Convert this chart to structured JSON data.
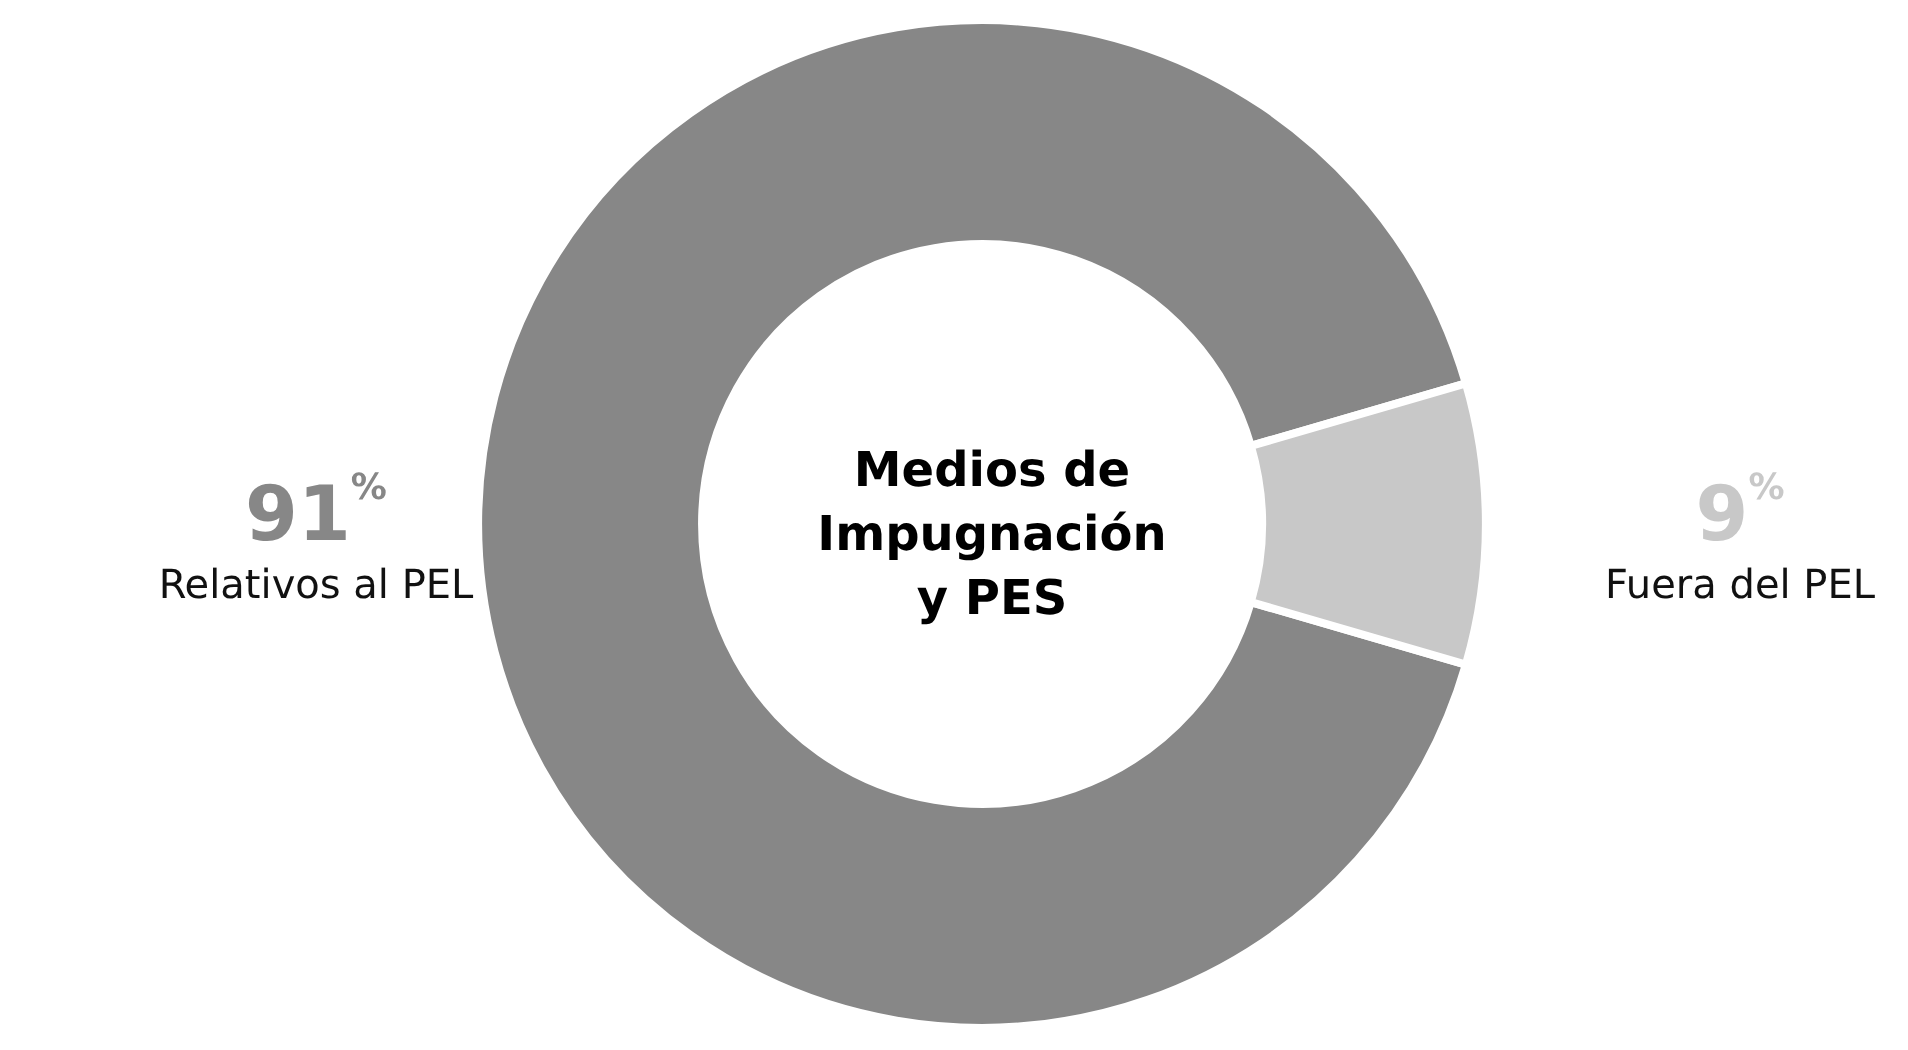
{
  "chart_data": {
    "type": "donut",
    "title": "Medios de Impugnación y PES",
    "categories": [
      "Relativos al PEL",
      "Fuera del PEL"
    ],
    "values": [
      91,
      9
    ],
    "colors": [
      "#878787",
      "#c8c8c8"
    ],
    "value_labels": [
      "91%",
      "9%"
    ],
    "legend": false
  }
}
